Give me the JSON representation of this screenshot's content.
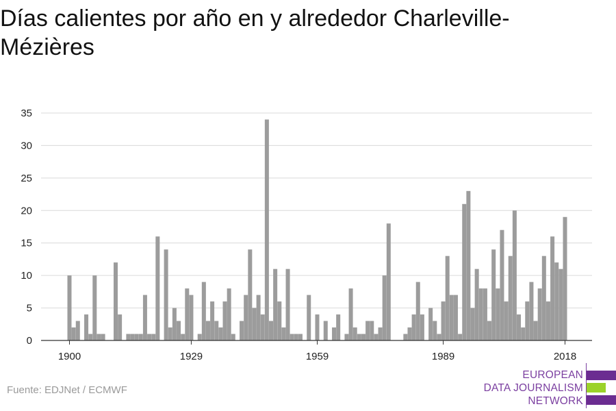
{
  "title": "Días calientes por año en y alrededor Charleville-Mézières",
  "source": "Fuente: EDJNet / ECMWF",
  "logo": {
    "lines": [
      "EUROPEAN",
      "DATA JOURNALISM",
      "NETWORK"
    ],
    "colors": {
      "purple": "#6b2c91",
      "green": "#9bd22a"
    }
  },
  "chart_data": {
    "type": "bar",
    "title": "Días calientes por año en y alrededor Charleville-Mézières",
    "xlabel": "",
    "ylabel": "",
    "ylim": [
      0,
      35
    ],
    "y_ticks": [
      0,
      5,
      10,
      15,
      20,
      25,
      30,
      35
    ],
    "x_ticks": [
      1900,
      1929,
      1959,
      1989,
      2018
    ],
    "grid": true,
    "bar_color": "#9c9c9c",
    "x": [
      1900,
      1901,
      1902,
      1903,
      1904,
      1905,
      1906,
      1907,
      1908,
      1909,
      1910,
      1911,
      1912,
      1913,
      1914,
      1915,
      1916,
      1917,
      1918,
      1919,
      1920,
      1921,
      1922,
      1923,
      1924,
      1925,
      1926,
      1927,
      1928,
      1929,
      1930,
      1931,
      1932,
      1933,
      1934,
      1935,
      1936,
      1937,
      1938,
      1939,
      1940,
      1941,
      1942,
      1943,
      1944,
      1945,
      1946,
      1947,
      1948,
      1949,
      1950,
      1951,
      1952,
      1953,
      1954,
      1955,
      1956,
      1957,
      1958,
      1959,
      1960,
      1961,
      1962,
      1963,
      1964,
      1965,
      1966,
      1967,
      1968,
      1969,
      1970,
      1971,
      1972,
      1973,
      1974,
      1975,
      1976,
      1977,
      1978,
      1979,
      1980,
      1981,
      1982,
      1983,
      1984,
      1985,
      1986,
      1987,
      1988,
      1989,
      1990,
      1991,
      1992,
      1993,
      1994,
      1995,
      1996,
      1997,
      1998,
      1999,
      2000,
      2001,
      2002,
      2003,
      2004,
      2005,
      2006,
      2007,
      2008,
      2009,
      2010,
      2011,
      2012,
      2013,
      2014,
      2015,
      2016,
      2017,
      2018
    ],
    "values": [
      10,
      2,
      3,
      0,
      4,
      1,
      10,
      1,
      1,
      0,
      0,
      12,
      4,
      0,
      1,
      1,
      1,
      1,
      7,
      1,
      1,
      16,
      0,
      14,
      2,
      5,
      3,
      1,
      8,
      7,
      0,
      1,
      9,
      3,
      6,
      3,
      2,
      6,
      8,
      1,
      0,
      3,
      7,
      14,
      5,
      7,
      4,
      34,
      3,
      11,
      6,
      2,
      11,
      1,
      1,
      1,
      0,
      7,
      0,
      4,
      0,
      3,
      0,
      2,
      4,
      0,
      1,
      8,
      2,
      1,
      1,
      3,
      3,
      1,
      2,
      10,
      18,
      0,
      0,
      0,
      1,
      2,
      4,
      9,
      4,
      0,
      5,
      3,
      1,
      6,
      13,
      7,
      7,
      1,
      21,
      23,
      5,
      11,
      8,
      8,
      3,
      14,
      8,
      17,
      6,
      13,
      20,
      4,
      2,
      6,
      9,
      3,
      8,
      13,
      6,
      16,
      12,
      11,
      19
    ]
  }
}
